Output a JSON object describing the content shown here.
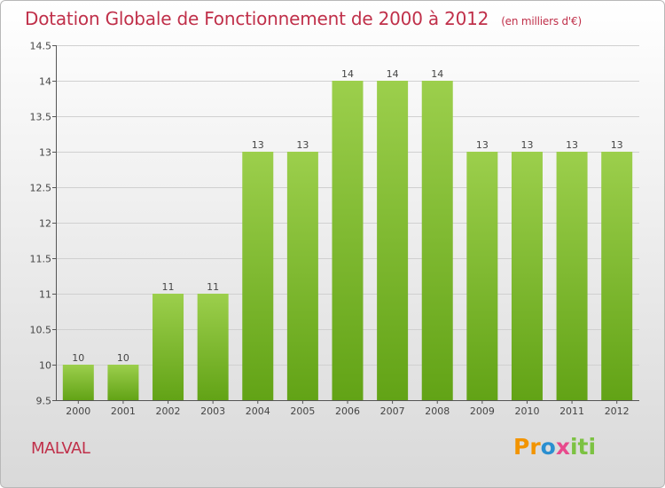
{
  "title": "Dotation Globale de Fonctionnement de 2000 à 2012",
  "subtitle": "(en milliers d'€)",
  "commune": "MALVAL",
  "logo": {
    "p1": "Pr",
    "p2": "o",
    "p3": "x",
    "p4": "iti"
  },
  "colors": {
    "title": "#c0304a",
    "bar_light": "#9ccf4c",
    "bar_dark": "#62a316"
  },
  "chart_data": {
    "type": "bar",
    "categories": [
      "2000",
      "2001",
      "2002",
      "2003",
      "2004",
      "2005",
      "2006",
      "2007",
      "2008",
      "2009",
      "2010",
      "2011",
      "2012"
    ],
    "values": [
      10,
      10,
      11,
      11,
      13,
      13,
      14,
      14,
      14,
      13,
      13,
      13,
      13
    ],
    "value_labels": [
      "10",
      "10",
      "11",
      "11",
      "13",
      "13",
      "14",
      "14",
      "14",
      "13",
      "13",
      "13",
      "13"
    ],
    "ylim": [
      9.5,
      14.5
    ],
    "yticks": [
      9.5,
      10,
      10.5,
      11,
      11.5,
      12,
      12.5,
      13,
      13.5,
      14,
      14.5
    ],
    "ytick_labels": [
      "9.5",
      "10",
      "10.5",
      "11",
      "11.5",
      "12",
      "12.5",
      "13",
      "13.5",
      "14",
      "14.5"
    ],
    "grid": true,
    "xlabel": "",
    "ylabel": ""
  }
}
